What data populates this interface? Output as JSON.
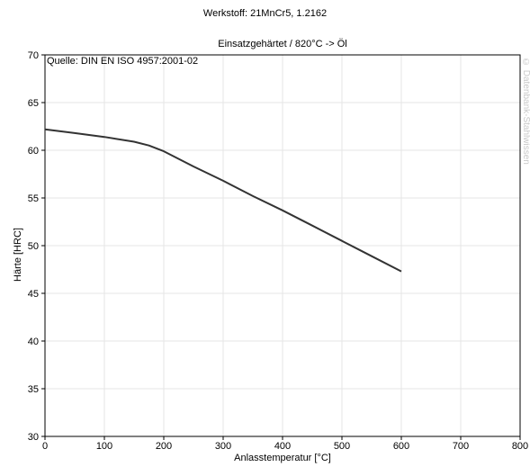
{
  "chart_data": {
    "type": "line",
    "title": "Werkstoff: 21MnCr5, 1.2162",
    "subtitle": "Einsatzgehärtet / 820°C -> Öl",
    "source_note": "Quelle: DIN EN ISO 4957:2001-02",
    "watermark": "© Datenbank-Stahlwissen",
    "xlabel": "Anlasstemperatur [°C]",
    "ylabel": "Härte [HRC]",
    "xlim": [
      0,
      800
    ],
    "ylim": [
      30,
      70
    ],
    "xticks": [
      0,
      100,
      200,
      300,
      400,
      500,
      600,
      700,
      800
    ],
    "yticks": [
      30,
      35,
      40,
      45,
      50,
      55,
      60,
      65,
      70
    ],
    "grid": true,
    "series": [
      {
        "color": "#333333",
        "x": [
          0,
          50,
          100,
          150,
          175,
          200,
          250,
          300,
          350,
          400,
          450,
          500,
          550,
          600
        ],
        "y": [
          62.2,
          61.8,
          61.4,
          60.9,
          60.5,
          59.9,
          58.3,
          56.8,
          55.2,
          53.7,
          52.1,
          50.5,
          48.9,
          47.3
        ]
      }
    ]
  }
}
